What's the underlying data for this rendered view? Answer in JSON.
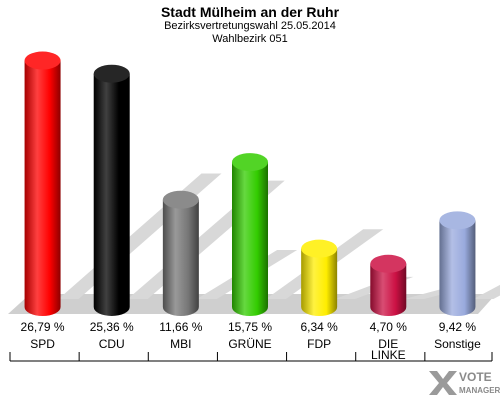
{
  "chart_data": {
    "type": "bar",
    "title": "Stadt Mülheim an der Ruhr",
    "subtitle": "Bezirksvertretungswahl 25.05.2014",
    "subtitle2": "Wahlbezirk 051",
    "categories": [
      "SPD",
      "CDU",
      "MBI",
      "GRÜNE",
      "FDP",
      "DIE LINKE",
      "Sonstige"
    ],
    "category_lines": [
      [
        "SPD"
      ],
      [
        "CDU"
      ],
      [
        "MBI"
      ],
      [
        "GRÜNE"
      ],
      [
        "FDP"
      ],
      [
        "DIE",
        "LINKE"
      ],
      [
        "Sonstige"
      ]
    ],
    "values": [
      26.79,
      25.36,
      11.66,
      15.75,
      6.34,
      4.7,
      9.42
    ],
    "value_labels": [
      "26,79 %",
      "25,36 %",
      "11,66 %",
      "15,75 %",
      "6,34 %",
      "4,70 %",
      "9,42 %"
    ],
    "colors": [
      "#ff0000",
      "#000000",
      "#777777",
      "#33cc00",
      "#ffee00",
      "#cc1144",
      "#99aadd"
    ],
    "ylim": [
      0,
      28
    ],
    "grid": false,
    "legend": "none"
  },
  "watermark": {
    "line1": "VOTE",
    "line2": "MANAGER"
  }
}
